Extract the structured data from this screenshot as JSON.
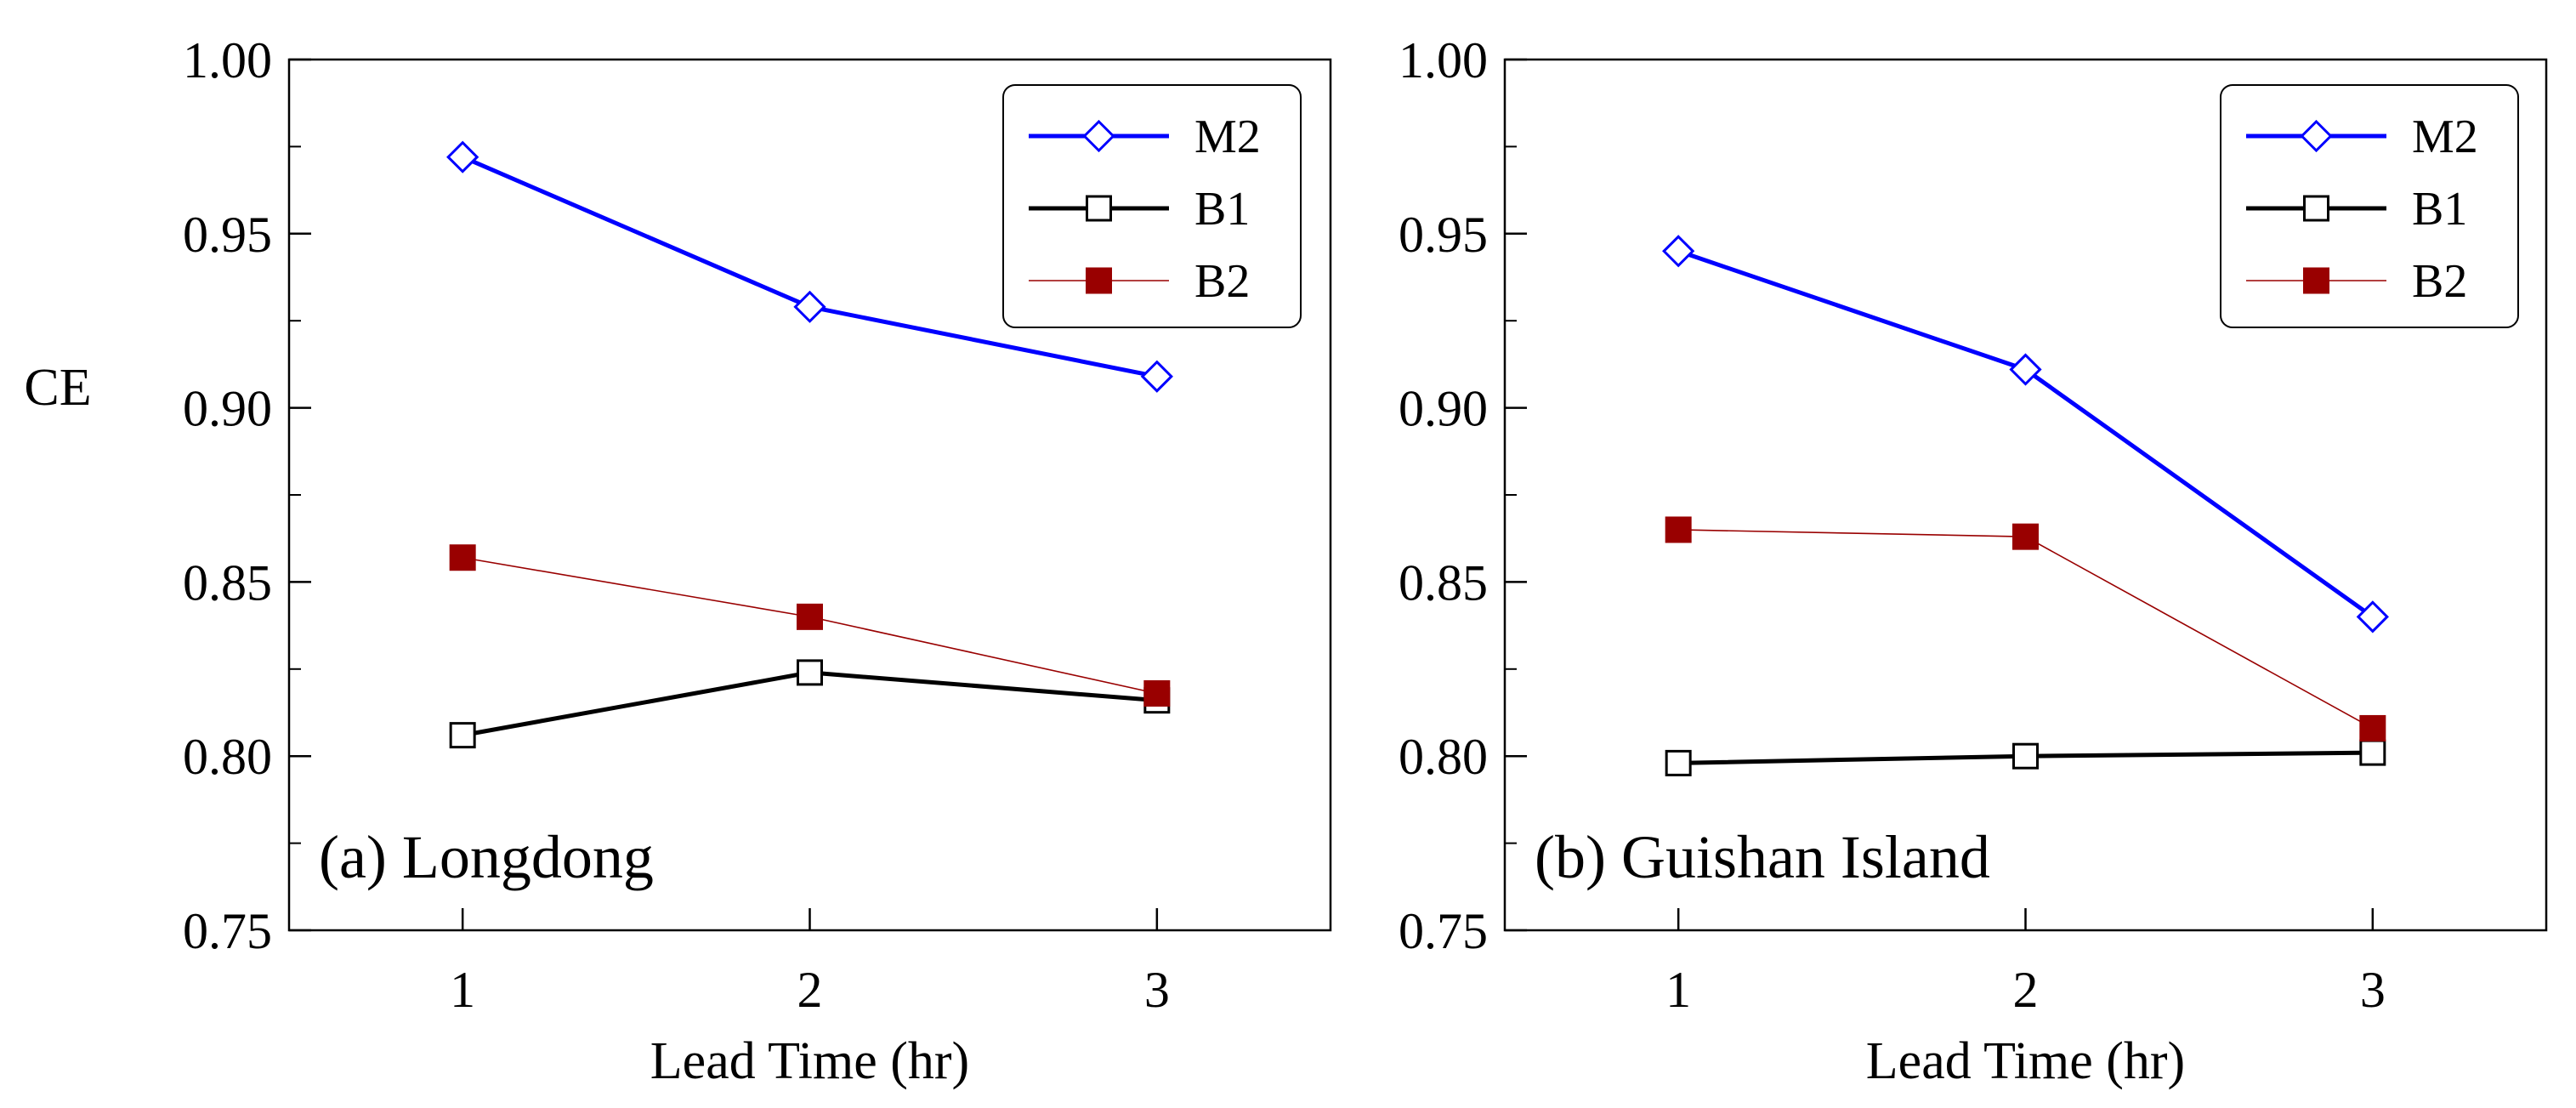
{
  "chart_data": [
    {
      "type": "line",
      "panel_label": "(a) Longdong",
      "xlabel": "Lead Time (hr)",
      "ylabel": "CE",
      "x": [
        1,
        2,
        3
      ],
      "x_tick_labels": [
        "1",
        "2",
        "3"
      ],
      "xlim": [
        0.5,
        3.5
      ],
      "ylim": [
        0.75,
        1.0
      ],
      "y_ticks": [
        0.75,
        0.8,
        0.85,
        0.9,
        0.95,
        1.0
      ],
      "y_tick_labels": [
        "0.75",
        "0.80",
        "0.85",
        "0.90",
        "0.95",
        "1.00"
      ],
      "legend_position": "top-right",
      "series": [
        {
          "name": "M2",
          "values": [
            0.972,
            0.929,
            0.909
          ],
          "color": "#0000ff",
          "marker": "open-diamond"
        },
        {
          "name": "B1",
          "values": [
            0.806,
            0.824,
            0.816
          ],
          "color": "#000000",
          "marker": "open-square"
        },
        {
          "name": "B2",
          "values": [
            0.857,
            0.84,
            0.818
          ],
          "color": "#990000",
          "marker": "filled-square"
        }
      ]
    },
    {
      "type": "line",
      "panel_label": "(b) Guishan Island",
      "xlabel": "Lead Time (hr)",
      "ylabel": "",
      "x": [
        1,
        2,
        3
      ],
      "x_tick_labels": [
        "1",
        "2",
        "3"
      ],
      "xlim": [
        0.5,
        3.5
      ],
      "ylim": [
        0.75,
        1.0
      ],
      "y_ticks": [
        0.75,
        0.8,
        0.85,
        0.9,
        0.95,
        1.0
      ],
      "y_tick_labels": [
        "0.75",
        "0.80",
        "0.85",
        "0.90",
        "0.95",
        "1.00"
      ],
      "legend_position": "top-right",
      "series": [
        {
          "name": "M2",
          "values": [
            0.945,
            0.911,
            0.84
          ],
          "color": "#0000ff",
          "marker": "open-diamond"
        },
        {
          "name": "B1",
          "values": [
            0.798,
            0.8,
            0.801
          ],
          "color": "#000000",
          "marker": "open-square"
        },
        {
          "name": "B2",
          "values": [
            0.865,
            0.863,
            0.808
          ],
          "color": "#990000",
          "marker": "filled-square"
        }
      ]
    }
  ]
}
